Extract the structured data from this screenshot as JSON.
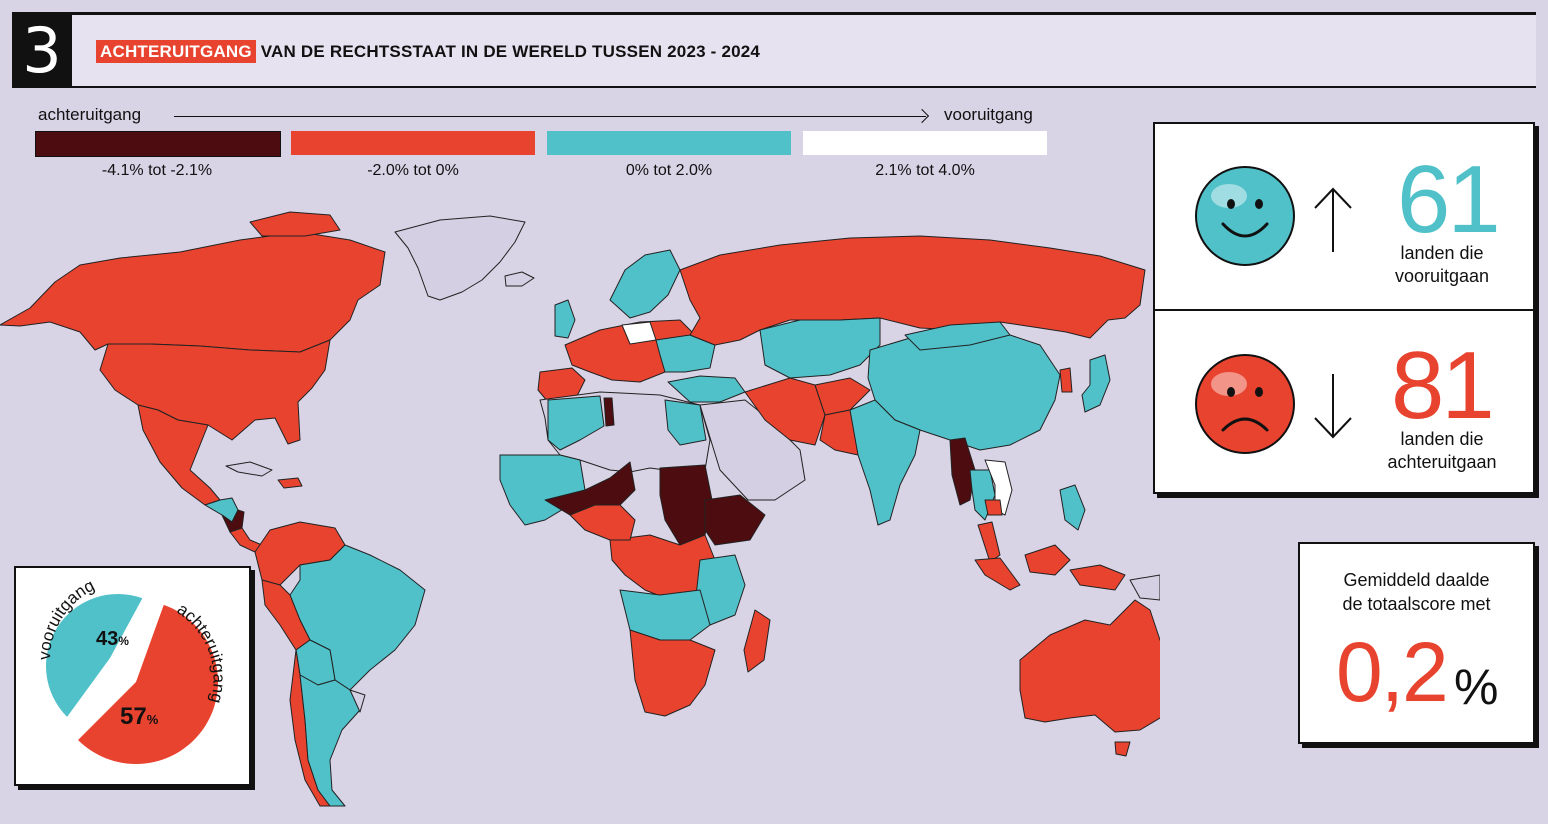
{
  "header": {
    "number": "3",
    "highlight": "ACHTERUITGANG",
    "title_rest": "VAN DE RECHTSSTAAT IN DE WERELD TUSSEN 2023 - 2024"
  },
  "legend": {
    "start_label": "achteruitgang",
    "end_label": "vooruitgang",
    "items": [
      {
        "label": "-4.1% tot -2.1%",
        "color": "#4d0c10"
      },
      {
        "label": "-2.0% tot 0%",
        "color": "#e8432f"
      },
      {
        "label": "0% tot 2.0%",
        "color": "#50c1c9"
      },
      {
        "label": "2.1% tot 4.0%",
        "color": "#ffffff"
      }
    ]
  },
  "stats": {
    "up": {
      "value": "61",
      "line1": "landen die",
      "line2": "vooruitgaan",
      "color": "#50c1c9",
      "icon": "happy-face-icon"
    },
    "down": {
      "value": "81",
      "line1": "landen die",
      "line2": "achteruitgaan",
      "color": "#e8432f",
      "icon": "sad-face-icon"
    }
  },
  "average": {
    "line1": "Gemiddeld daalde",
    "line2": "de totaalscore met",
    "value": "0,2",
    "unit": "%"
  },
  "pie": {
    "progress": {
      "label": "vooruitgang",
      "value": 43,
      "display": "43",
      "color": "#50c1c9"
    },
    "decline": {
      "label": "achteruitgang",
      "value": 57,
      "display": "57",
      "color": "#e8432f"
    },
    "unit": "%"
  },
  "colors": {
    "background": "#d9d3e6",
    "no_data": "#d4cfe2",
    "severe_decline": "#4d0c10",
    "decline": "#e8432f",
    "progress": "#50c1c9",
    "strong_progress": "#ffffff"
  }
}
